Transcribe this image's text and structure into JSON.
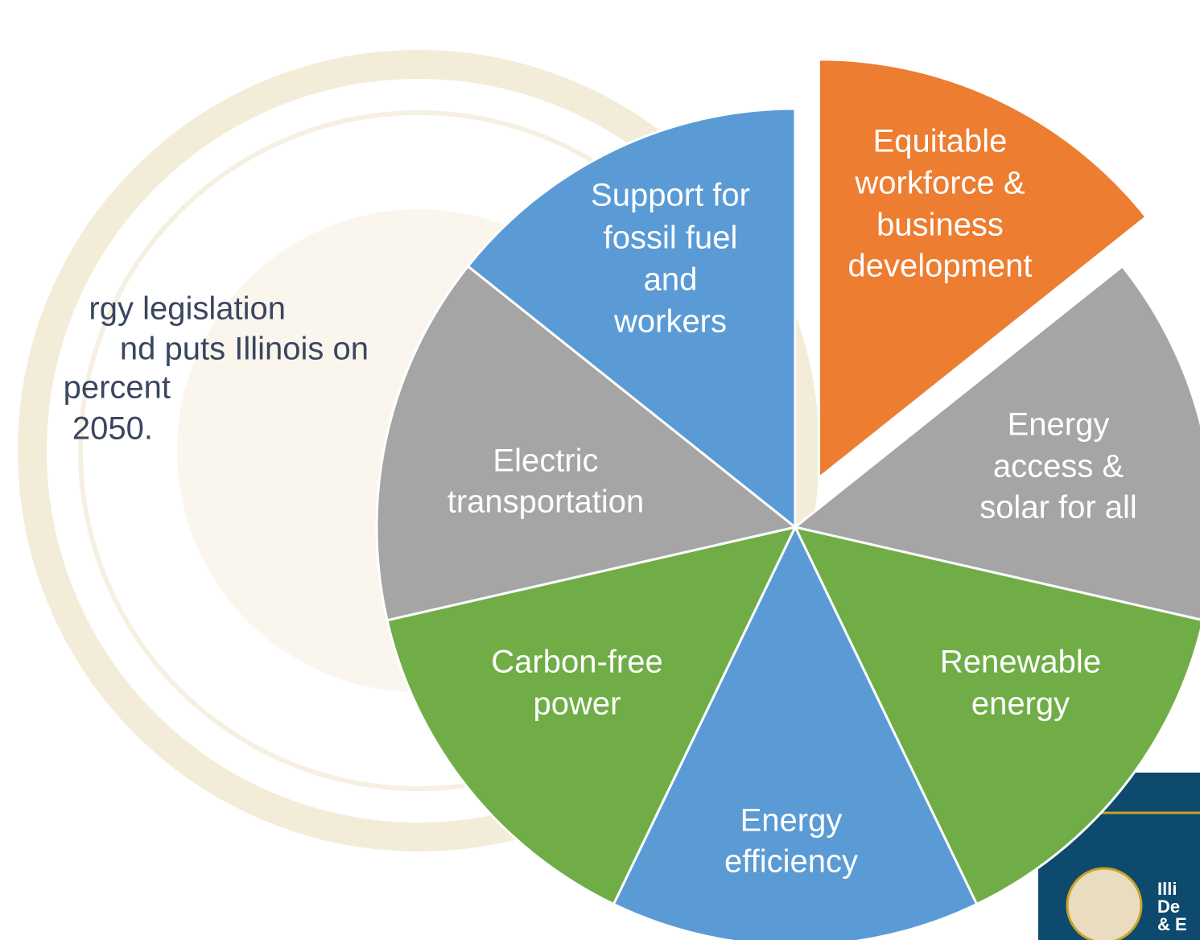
{
  "side_text": {
    "lines": [
      "rgy legislation",
      "nd puts Illinois on",
      "percent",
      "2050."
    ]
  },
  "segments": [
    {
      "label_lines": [
        "Equitable",
        "workforce &",
        "business",
        "development"
      ],
      "color": "#ed7d31",
      "exploded": true
    },
    {
      "label_lines": [
        "Energy",
        "access &",
        "solar for all"
      ],
      "color": "#a5a5a5"
    },
    {
      "label_lines": [
        "Renewable",
        "energy"
      ],
      "color": "#70ad47"
    },
    {
      "label_lines": [
        "Energy",
        "efficiency"
      ],
      "color": "#5b9bd5"
    },
    {
      "label_lines": [
        "Carbon-free",
        "power"
      ],
      "color": "#70ad47"
    },
    {
      "label_lines": [
        "Electric",
        "transportation"
      ],
      "color": "#a5a5a5"
    },
    {
      "label_lines": [
        "Support for",
        "fossil fuel",
        "and",
        "workers"
      ],
      "color": "#5b9bd5"
    }
  ],
  "logo": {
    "lines": [
      "Illi",
      "De",
      "& E"
    ]
  }
}
